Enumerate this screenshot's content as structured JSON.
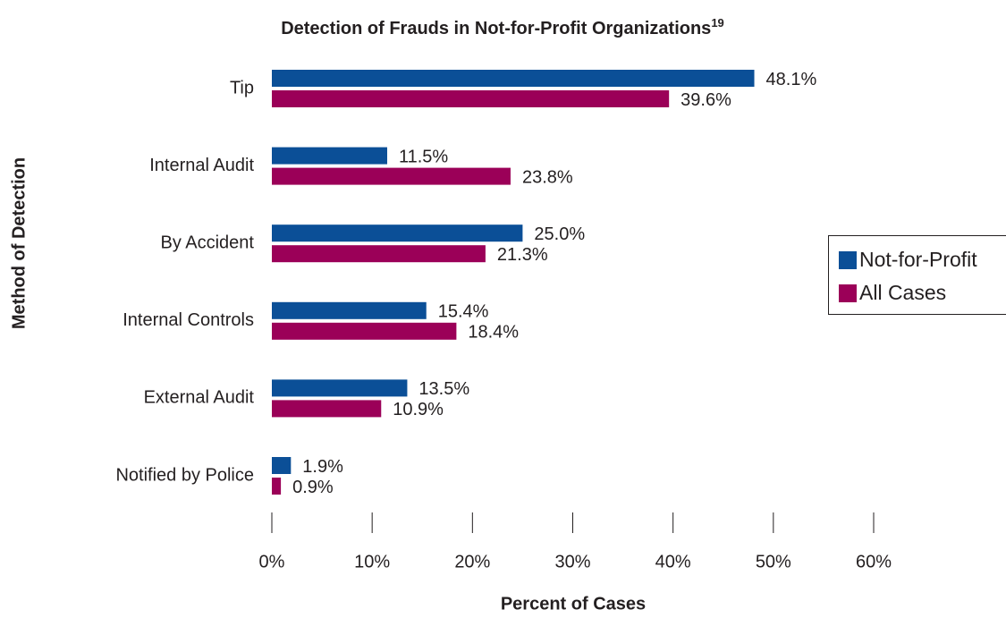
{
  "chart_data": {
    "type": "barh",
    "title": "Detection of Frauds in Not-for-Profit Organizations",
    "title_superscript": "19",
    "xlabel": "Percent of Cases",
    "ylabel": "Method of Detection",
    "categories": [
      "Tip",
      "Internal Audit",
      "By Accident",
      "Internal Controls",
      "External Audit",
      "Notified by Police"
    ],
    "series": [
      {
        "name": "Not-for-Profit",
        "color": "#0b4f97",
        "values": [
          48.1,
          11.5,
          25.0,
          15.4,
          13.5,
          1.9
        ],
        "value_labels": [
          "48.1%",
          "11.5%",
          "25.0%",
          "15.4%",
          "13.5%",
          "1.9%"
        ]
      },
      {
        "name": "All Cases",
        "color": "#9b0058",
        "values": [
          39.6,
          23.8,
          21.3,
          18.4,
          10.9,
          0.9
        ],
        "value_labels": [
          "39.6%",
          "23.8%",
          "21.3%",
          "18.4%",
          "10.9%",
          "0.9%"
        ]
      }
    ],
    "xlim": [
      0,
      60
    ],
    "xticks": [
      {
        "value": 0,
        "label": "0%"
      },
      {
        "value": 10,
        "label": "10%"
      },
      {
        "value": 20,
        "label": "20%"
      },
      {
        "value": 30,
        "label": "30%"
      },
      {
        "value": 40,
        "label": "40%"
      },
      {
        "value": 50,
        "label": "50%"
      },
      {
        "value": 60,
        "label": "60%"
      }
    ],
    "legend": "right"
  }
}
